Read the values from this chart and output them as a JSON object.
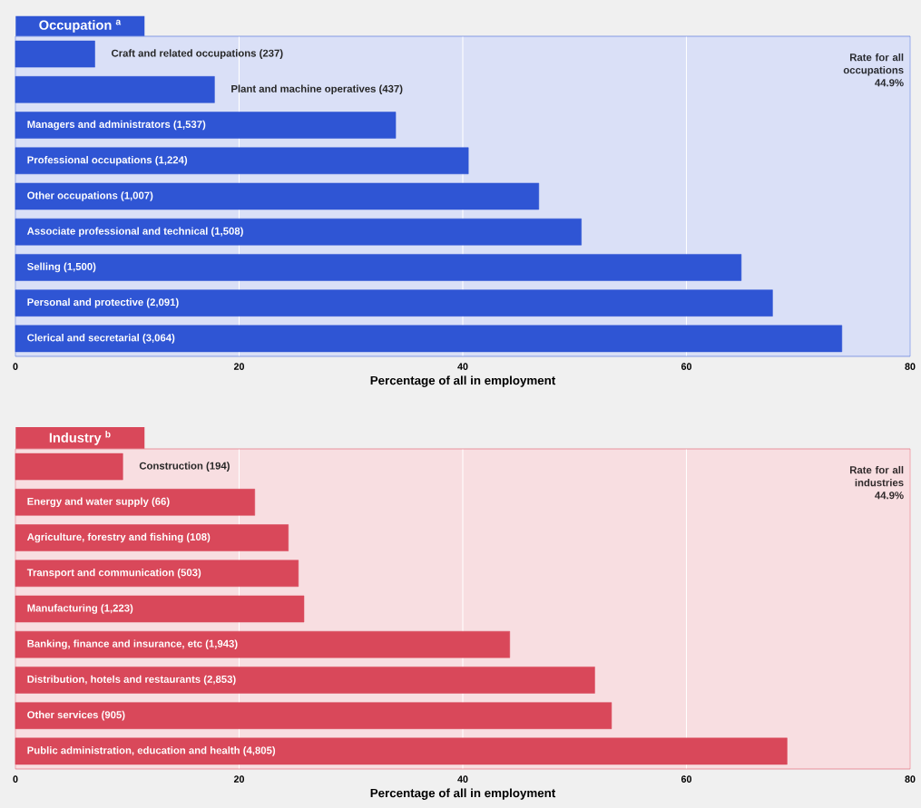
{
  "chart_data": [
    {
      "type": "bar",
      "orientation": "horizontal",
      "title": "Occupation $^{a}$",
      "xlabel": "Percentage of all in employment",
      "categories": [
        "Craft and related occupations (237)",
        "Plant and machine operatives (437)",
        "Managers and administrators (1,537)",
        "Professional occupations (1,224)",
        "Other occupations (1,007)",
        "Associate professional and technical (1,508)",
        "Selling (1,500)",
        "Personal and protective (2,091)",
        "Clerical and secretarial (3,064)"
      ],
      "values": [
        7.1,
        17.8,
        34.0,
        40.5,
        46.8,
        50.6,
        64.9,
        67.7,
        73.9
      ],
      "color": "#2f55d4",
      "xlim": [
        0,
        80
      ],
      "xticks": [
        0,
        20,
        40,
        60,
        80
      ],
      "grid": "x",
      "annotations": [
        "Rate for all occupations 44.9%"
      ]
    },
    {
      "type": "bar",
      "orientation": "horizontal",
      "title": "Industry $^{b}$",
      "xlabel": "Percentage of all in employment",
      "categories": [
        "Construction (194)",
        "Energy and water supply (66)",
        "Agriculture, forestry and fishing (108)",
        "Transport and communication (503)",
        "Manufacturing (1,223)",
        "Banking, finance and insurance, etc (1,943)",
        "Distribution, hotels and restaurants (2,853)",
        "Other services (905)",
        "Public administration, education and health (4,805)"
      ],
      "values": [
        9.6,
        21.4,
        24.4,
        25.3,
        25.8,
        44.2,
        51.8,
        53.3,
        69.0
      ],
      "color": "#d9485a",
      "xlim": [
        0,
        80
      ],
      "xticks": [
        0,
        20,
        40,
        60,
        80
      ],
      "grid": "x",
      "annotations": [
        "Rate for all industries 44.9%"
      ]
    }
  ]
}
